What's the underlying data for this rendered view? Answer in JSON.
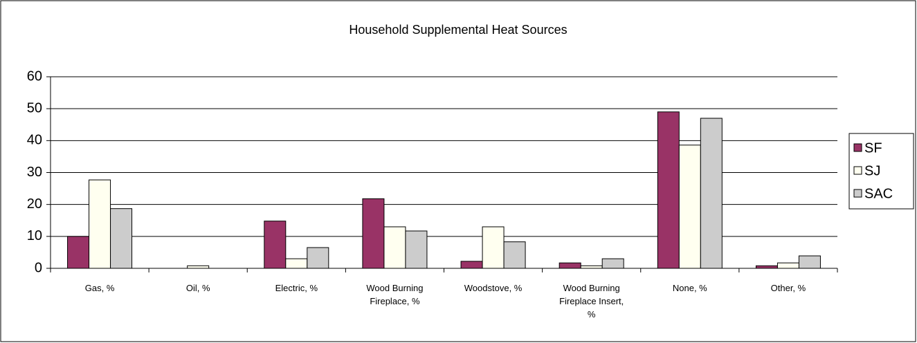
{
  "chart_data": {
    "type": "bar",
    "title": "Household Supplemental Heat Sources",
    "categories": [
      "Gas, %",
      "Oil, %",
      "Electric, %",
      "Wood Burning Fireplace, %",
      "Woodstove, %",
      "Wood Burning Fireplace Insert, %",
      "None, %",
      "Other, %"
    ],
    "series": [
      {
        "name": "SF",
        "color": "#993366",
        "values": [
          10,
          0,
          14.8,
          21.8,
          2.2,
          1.7,
          49,
          0.8
        ]
      },
      {
        "name": "SJ",
        "color": "#fffff0",
        "values": [
          27.7,
          0.8,
          3,
          13,
          13,
          0.8,
          38.6,
          1.7
        ]
      },
      {
        "name": "SAC",
        "color": "#cccccc",
        "values": [
          18.7,
          0,
          6.5,
          11.7,
          8.3,
          3,
          47,
          3.9
        ]
      }
    ],
    "ylim": [
      0,
      60
    ],
    "yticks": [
      0,
      10,
      20,
      30,
      40,
      50,
      60
    ],
    "grid": true,
    "legend": "right"
  }
}
